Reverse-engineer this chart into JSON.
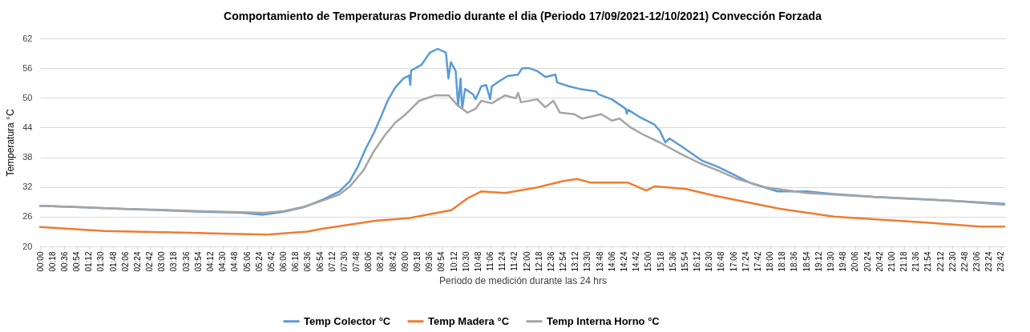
{
  "chart_data": {
    "type": "line",
    "title": "Comportamiento de Temperaturas Promedio durante el dia (Periodo 17/09/2021-12/10/2021) Convección Forzada",
    "xlabel": "Periodo de medición durante las 24 hrs",
    "ylabel": "Temperatura °C",
    "xlim": [
      0,
      23.8
    ],
    "ylim": [
      20,
      62
    ],
    "yticks": [
      20,
      26,
      32,
      38,
      44,
      50,
      56,
      62
    ],
    "xticks": [
      {
        "value": 0,
        "label": "00:00"
      },
      {
        "value": 0.3,
        "label": "00:18"
      },
      {
        "value": 0.6,
        "label": "00:36"
      },
      {
        "value": 0.9,
        "label": "00:54"
      },
      {
        "value": 1.2,
        "label": "01:12"
      },
      {
        "value": 1.5,
        "label": "01:30"
      },
      {
        "value": 1.8,
        "label": "01:48"
      },
      {
        "value": 2.1,
        "label": "02:06"
      },
      {
        "value": 2.4,
        "label": "02:24"
      },
      {
        "value": 2.7,
        "label": "02:42"
      },
      {
        "value": 3,
        "label": "03:00"
      },
      {
        "value": 3.3,
        "label": "03:18"
      },
      {
        "value": 3.6,
        "label": "03:36"
      },
      {
        "value": 3.9,
        "label": "03:54"
      },
      {
        "value": 4.2,
        "label": "04:12"
      },
      {
        "value": 4.5,
        "label": "04:30"
      },
      {
        "value": 4.8,
        "label": "04:48"
      },
      {
        "value": 5.1,
        "label": "05:06"
      },
      {
        "value": 5.4,
        "label": "05:24"
      },
      {
        "value": 5.7,
        "label": "05:42"
      },
      {
        "value": 6,
        "label": "06:00"
      },
      {
        "value": 6.3,
        "label": "06:18"
      },
      {
        "value": 6.6,
        "label": "06:36"
      },
      {
        "value": 6.9,
        "label": "06:54"
      },
      {
        "value": 7.2,
        "label": "07:12"
      },
      {
        "value": 7.5,
        "label": "07:30"
      },
      {
        "value": 7.8,
        "label": "07:48"
      },
      {
        "value": 8.1,
        "label": "08:06"
      },
      {
        "value": 8.4,
        "label": "08:24"
      },
      {
        "value": 8.7,
        "label": "08:42"
      },
      {
        "value": 9,
        "label": "09:00"
      },
      {
        "value": 9.3,
        "label": "09:18"
      },
      {
        "value": 9.6,
        "label": "09:36"
      },
      {
        "value": 9.9,
        "label": "09:54"
      },
      {
        "value": 10.2,
        "label": "10:12"
      },
      {
        "value": 10.5,
        "label": "10:30"
      },
      {
        "value": 10.8,
        "label": "10:48"
      },
      {
        "value": 11.1,
        "label": "11:06"
      },
      {
        "value": 11.4,
        "label": "11:24"
      },
      {
        "value": 11.7,
        "label": "11:42"
      },
      {
        "value": 12,
        "label": "12:00"
      },
      {
        "value": 12.3,
        "label": "12:18"
      },
      {
        "value": 12.6,
        "label": "12:36"
      },
      {
        "value": 12.9,
        "label": "12:54"
      },
      {
        "value": 13.2,
        "label": "13:12"
      },
      {
        "value": 13.5,
        "label": "13:30"
      },
      {
        "value": 13.8,
        "label": "13:48"
      },
      {
        "value": 14.1,
        "label": "14:06"
      },
      {
        "value": 14.4,
        "label": "14:24"
      },
      {
        "value": 14.7,
        "label": "14:42"
      },
      {
        "value": 15,
        "label": "15:00"
      },
      {
        "value": 15.3,
        "label": "15:18"
      },
      {
        "value": 15.6,
        "label": "15:36"
      },
      {
        "value": 15.9,
        "label": "15:54"
      },
      {
        "value": 16.2,
        "label": "16:12"
      },
      {
        "value": 16.5,
        "label": "16:30"
      },
      {
        "value": 16.8,
        "label": "16:48"
      },
      {
        "value": 17.1,
        "label": "17:06"
      },
      {
        "value": 17.4,
        "label": "17:24"
      },
      {
        "value": 17.7,
        "label": "17:42"
      },
      {
        "value": 18,
        "label": "18:00"
      },
      {
        "value": 18.3,
        "label": "18:18"
      },
      {
        "value": 18.6,
        "label": "18:36"
      },
      {
        "value": 18.9,
        "label": "18:54"
      },
      {
        "value": 19.2,
        "label": "19:12"
      },
      {
        "value": 19.5,
        "label": "19:30"
      },
      {
        "value": 19.8,
        "label": "19:48"
      },
      {
        "value": 20.1,
        "label": "20:06"
      },
      {
        "value": 20.4,
        "label": "20:24"
      },
      {
        "value": 20.7,
        "label": "20:42"
      },
      {
        "value": 21,
        "label": "21:00"
      },
      {
        "value": 21.3,
        "label": "21:18"
      },
      {
        "value": 21.6,
        "label": "21:36"
      },
      {
        "value": 21.9,
        "label": "21:54"
      },
      {
        "value": 22.2,
        "label": "22:12"
      },
      {
        "value": 22.5,
        "label": "22:30"
      },
      {
        "value": 22.8,
        "label": "22:48"
      },
      {
        "value": 23.1,
        "label": "23:06"
      },
      {
        "value": 23.4,
        "label": "23:24"
      },
      {
        "value": 23.7,
        "label": "23:42"
      }
    ],
    "grid": "y",
    "legend": "bottom",
    "line_style": "solid",
    "series": [
      {
        "name": "Temp Colector °C",
        "color": "#5b9bd5",
        "x": [
          0,
          1,
          2,
          3,
          4,
          5,
          5.5,
          6,
          6.5,
          6.99,
          7.38,
          7.64,
          7.83,
          8.03,
          8.23,
          8.41,
          8.57,
          8.76,
          8.96,
          9.1,
          9.13,
          9.15,
          9.41,
          9.61,
          9.81,
          10.01,
          10.07,
          10.13,
          10.25,
          10.31,
          10.37,
          10.41,
          10.48,
          10.68,
          10.74,
          10.88,
          11,
          11.1,
          11.14,
          11.33,
          11.53,
          11.79,
          11.89,
          12.06,
          12.26,
          12.46,
          12.71,
          12.75,
          13.05,
          13.31,
          13.71,
          13.77,
          14.1,
          14.44,
          14.47,
          14.5,
          14.77,
          15.15,
          15.28,
          15.42,
          15.52,
          15.82,
          16.33,
          16.73,
          17.2,
          17.52,
          18.19,
          18.9,
          19.57,
          20.56,
          21.87,
          23.19,
          23.78
        ],
        "values": [
          28.2,
          27.9,
          27.6,
          27.3,
          27,
          26.8,
          26.4,
          27,
          27.9,
          29.5,
          31.1,
          33.2,
          36,
          39.7,
          42.9,
          46.2,
          49.4,
          52.1,
          53.9,
          54.5,
          52.6,
          55.5,
          56.7,
          59.1,
          59.9,
          59.1,
          53.9,
          57.2,
          55.4,
          48.3,
          53.9,
          47.8,
          51.8,
          50.7,
          49.7,
          52.3,
          52.6,
          49.7,
          52.3,
          53.4,
          54.4,
          54.7,
          56,
          56,
          55.4,
          54.2,
          54.7,
          53.1,
          52.3,
          51.8,
          51.3,
          50.7,
          49.7,
          47.8,
          46.8,
          47.6,
          46.2,
          44.6,
          43.4,
          41,
          41.8,
          40.2,
          37.3,
          36,
          34.1,
          32.8,
          31.1,
          31.1,
          30.6,
          30,
          29.5,
          28.9,
          28.6
        ]
      },
      {
        "name": "Temp Madera °C",
        "color": "#ed7d31",
        "x": [
          0,
          1.58,
          3.95,
          5.6,
          6.59,
          6.98,
          7.64,
          8.3,
          9.09,
          9.61,
          10.14,
          10.54,
          10.88,
          11.47,
          12.26,
          12.91,
          13.24,
          13.57,
          14.49,
          14.95,
          15.15,
          15.48,
          15.93,
          16.6,
          17.26,
          18.25,
          19.57,
          20.56,
          21.87,
          23.19,
          23.78
        ],
        "values": [
          23.9,
          23.1,
          22.7,
          22.4,
          23,
          23.6,
          24.4,
          25.2,
          25.7,
          26.5,
          27.3,
          29.7,
          31.1,
          30.8,
          31.9,
          33.2,
          33.6,
          32.9,
          32.9,
          31.3,
          32.1,
          31.9,
          31.6,
          30.3,
          29.2,
          27.6,
          26,
          25.5,
          24.8,
          24,
          24
        ]
      },
      {
        "name": "Temp Interna Horno °C",
        "color": "#a5a5a5",
        "x": [
          0,
          1,
          2,
          3,
          4,
          5,
          5.5,
          6,
          6.5,
          6.99,
          7.38,
          7.64,
          7.97,
          8.23,
          8.5,
          8.76,
          9.02,
          9.35,
          9.75,
          10.08,
          10.28,
          10.41,
          10.54,
          10.74,
          10.88,
          11.14,
          11.47,
          11.73,
          11.79,
          11.86,
          12.26,
          12.46,
          12.66,
          12.82,
          13.17,
          13.37,
          13.84,
          14.1,
          14.29,
          14.55,
          14.89,
          15.28,
          15.82,
          16.27,
          16.73,
          17.2,
          17.91,
          18.9,
          19.89,
          21.21,
          22.53,
          23.78
        ],
        "values": [
          28.2,
          27.9,
          27.6,
          27.4,
          27.1,
          26.9,
          26.8,
          27.1,
          28,
          29.3,
          30.5,
          32.1,
          35.3,
          39.2,
          42.4,
          45,
          46.7,
          49.4,
          50.5,
          50.5,
          48.6,
          47.8,
          47,
          47.8,
          49.4,
          48.9,
          50.5,
          49.9,
          51,
          49.1,
          49.7,
          48.1,
          49.4,
          47,
          46.7,
          45.8,
          46.7,
          45.4,
          45.8,
          44.1,
          42.5,
          41,
          38.6,
          36.8,
          35.3,
          33.6,
          31.9,
          30.8,
          30.3,
          29.7,
          29.2,
          28.4
        ]
      }
    ]
  }
}
